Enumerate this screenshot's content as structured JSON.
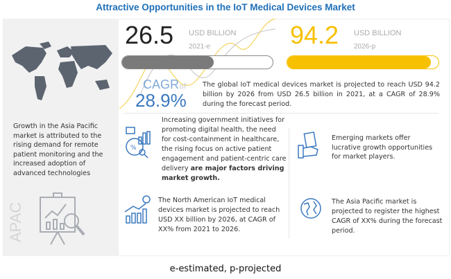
{
  "title": "Attractive Opportunities in the IoT Medical Devices Market",
  "left": {
    "text": "Growth in the Asia Pacific market is attributed to the rising demand for remote patient monitoring and the increased adoption of advanced technologies",
    "region_label": "APAC"
  },
  "metric_2021": {
    "value": "26.5",
    "unit": "USD BILLION",
    "year": "2021-e",
    "bar_fill_pct": 61,
    "color": "#7a7a7a"
  },
  "metric_2026": {
    "value": "94.2",
    "unit": "USD BILLION",
    "year": "2026-p",
    "bar_fill_pct": 95,
    "color": "#f7c000"
  },
  "cagr": {
    "label": "CAGR",
    "of": "of",
    "value": "28.9%"
  },
  "summary": "The global IoT medical devices market is projected to reach USD 94.2 billion by 2026 from USD 26.5 billion in 2021, at a CAGR of 28.9% during the forecast period.",
  "drivers": {
    "text": "Increasing government initiatives for promoting digital health, the need for cost-containment in healthcare, the rising focus on active patient engagement and patient-centric care delivery ",
    "bold": "are major factors driving market growth."
  },
  "emerging": "Emerging markets offer lucrative growth opportunities for market players.",
  "north_america": "The North American IoT medical devices market is projected to reach USD XX billion by 2026, at CAGR of XX% from 2021 to 2026.",
  "asia_pacific": "The Asia Pacific market is projected to register the highest CAGR of XX% during the forecast period.",
  "footnote": "e-estimated, p-projected"
}
